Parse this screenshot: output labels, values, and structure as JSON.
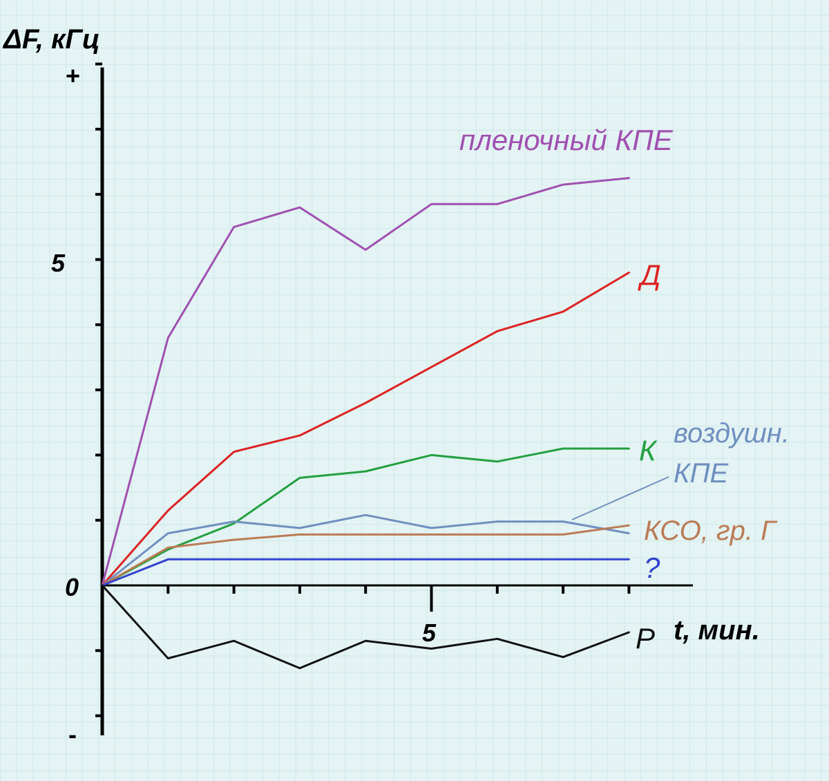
{
  "chart_data": {
    "type": "line",
    "title": "",
    "ylabel": "ΔF, кГц",
    "xlabel": "t, мин.",
    "y_plus_label": "+",
    "y_minus_label": "-",
    "xlim": [
      0,
      9
    ],
    "ylim": [
      -2.3,
      8
    ],
    "x_tick_labels": [
      {
        "value": 5,
        "label": "5"
      }
    ],
    "y_tick_labels": [
      {
        "value": 5,
        "label": "5"
      },
      {
        "value": 0,
        "label": "0"
      }
    ],
    "x": [
      0,
      1,
      2,
      3,
      4,
      5,
      6,
      7,
      8
    ],
    "series": [
      {
        "name": "пленочный КПЕ",
        "color": "#a050b0",
        "values": [
          0,
          3.8,
          5.5,
          5.8,
          5.15,
          5.85,
          5.85,
          6.15,
          6.25
        ]
      },
      {
        "name": "Д",
        "color": "#dd2222",
        "values": [
          0,
          1.15,
          2.05,
          2.3,
          2.8,
          3.35,
          3.9,
          4.2,
          4.8
        ]
      },
      {
        "name": "К",
        "color": "#22a040",
        "values": [
          0,
          0.55,
          0.95,
          1.65,
          1.75,
          2.0,
          1.9,
          2.1,
          2.1
        ]
      },
      {
        "name": "воздушн. КПЕ",
        "label_lines": [
          "воздушн.",
          "КПЕ"
        ],
        "color": "#6f8fc0",
        "values": [
          0,
          0.8,
          0.98,
          0.88,
          1.08,
          0.88,
          0.98,
          0.98,
          0.8
        ]
      },
      {
        "name": "КСО, гр. Г",
        "color": "#bb7b55",
        "values": [
          0,
          0.58,
          0.7,
          0.78,
          0.78,
          0.78,
          0.78,
          0.78,
          0.92
        ]
      },
      {
        "name": "?",
        "color": "#3344cc",
        "values": [
          0,
          0.4,
          0.4,
          0.4,
          0.4,
          0.4,
          0.4,
          0.4,
          0.4
        ]
      },
      {
        "name": "Р",
        "color": "#111111",
        "values": [
          0,
          -1.12,
          -0.85,
          -1.27,
          -0.85,
          -0.97,
          -0.82,
          -1.1,
          -0.72
        ]
      }
    ]
  }
}
